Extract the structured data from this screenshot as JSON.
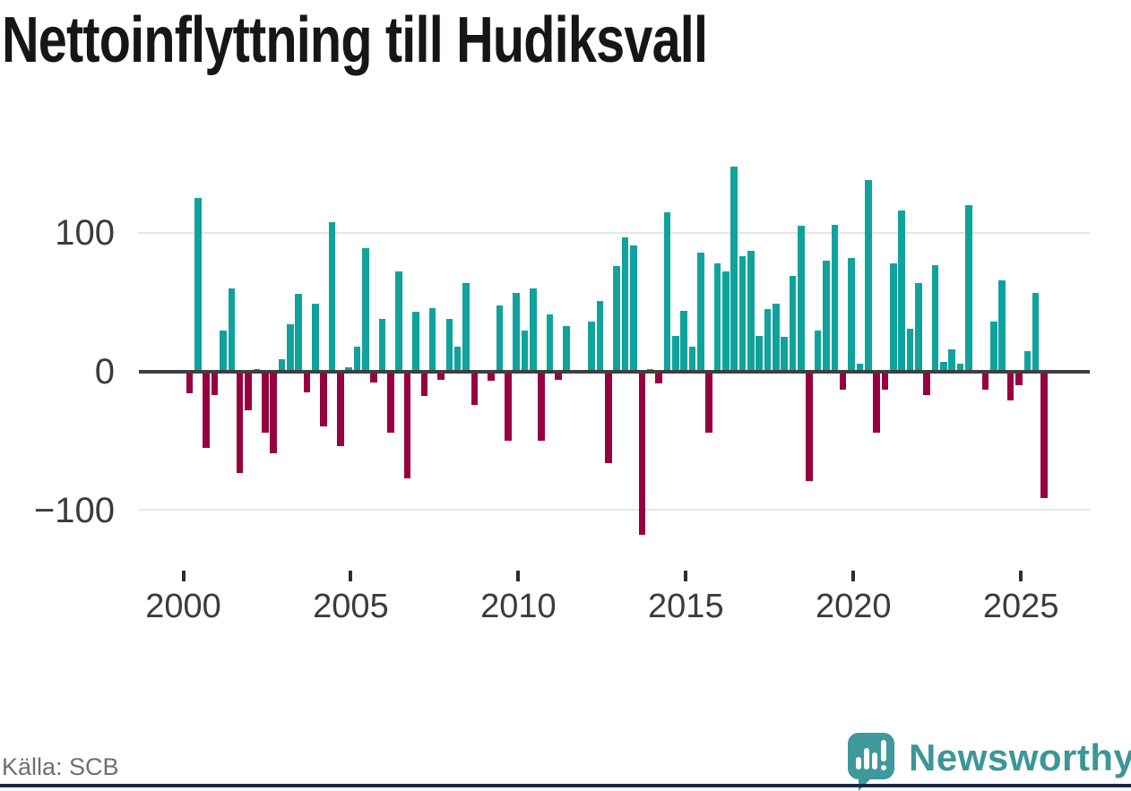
{
  "title": "Nettoinflyttning till Hudiksvall",
  "source": "Källa: SCB",
  "branding": {
    "wordmark": "Newsworthy",
    "logo_icon": "speech-bubble-bar-chart-icon"
  },
  "colors": {
    "positive_bar": "#10a39d",
    "negative_bar": "#98013f",
    "brand_teal": "#3c9697",
    "axis": "#3f3f3f",
    "gridline": "#e5e5e5",
    "bottom_border": "#1d2646"
  },
  "chart_data": {
    "type": "bar",
    "title": "Nettoinflyttning till Hudiksvall",
    "frequency": "quarterly",
    "start_period": "2000-Q1",
    "end_period": "2025-Q3",
    "x_tick_labels": [
      "2000",
      "2005",
      "2010",
      "2015",
      "2020",
      "2025"
    ],
    "y_tick_labels": [
      "100",
      "0",
      "−100"
    ],
    "ylim": [
      -130,
      160
    ],
    "gridlines_at": [
      100,
      -100
    ],
    "grid": true,
    "legend": false,
    "series": [
      {
        "name": "Nettoinflyttning",
        "values": [
          -15,
          125,
          -54,
          -16,
          30,
          60,
          -72,
          -27,
          2,
          -43,
          -58,
          9,
          34,
          56,
          -14,
          49,
          -39,
          108,
          -53,
          3,
          18,
          89,
          -7,
          38,
          -43,
          72,
          -76,
          43,
          -17,
          46,
          -5,
          38,
          18,
          64,
          -23,
          0,
          -6,
          48,
          -49,
          57,
          30,
          60,
          -49,
          41,
          -5,
          33,
          0,
          0,
          36,
          51,
          -65,
          76,
          97,
          91,
          -117,
          2,
          -8,
          115,
          26,
          44,
          18,
          86,
          -43,
          78,
          72,
          148,
          83,
          87,
          26,
          45,
          49,
          25,
          69,
          105,
          -78,
          30,
          80,
          106,
          -12,
          82,
          6,
          138,
          -43,
          -12,
          78,
          116,
          31,
          64,
          -16,
          77,
          7,
          16,
          6,
          120,
          0,
          -12,
          36,
          66,
          -20,
          -9,
          15,
          57,
          -90
        ]
      }
    ]
  }
}
